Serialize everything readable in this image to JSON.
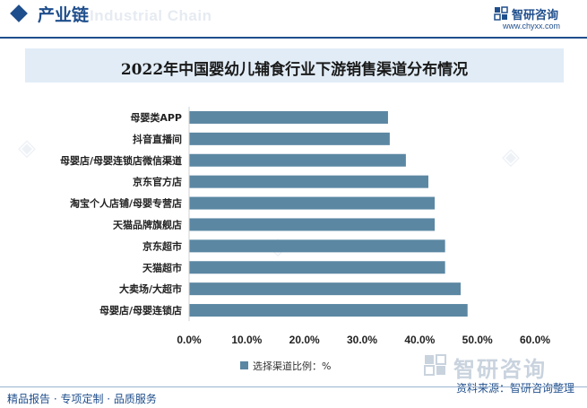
{
  "header": {
    "section_title": "产业链",
    "ghost_text": "Industrial Chain",
    "brand_name": "智研咨询",
    "brand_url": "www.chyxx.com"
  },
  "chart_data": {
    "type": "bar",
    "orientation": "horizontal",
    "title": "2022年中国婴幼儿辅食行业下游销售渠道分布情况",
    "categories": [
      "母婴类APP",
      "抖音直播间",
      "母婴店/母婴连锁店微信渠道",
      "京东官方店",
      "淘宝个人店铺/母婴专营店",
      "天猫品牌旗舰店",
      "京东超市",
      "天猫超市",
      "大卖场/大超市",
      "母婴店/母婴连锁店"
    ],
    "series": [
      {
        "name": "选择渠道比例：%",
        "values": [
          34.5,
          34.8,
          37.6,
          41.5,
          42.6,
          42.6,
          44.4,
          44.4,
          47.1,
          48.3
        ]
      }
    ],
    "xlim": [
      0,
      60
    ],
    "xticks": [
      "0.0%",
      "10.0%",
      "20.0%",
      "30.0%",
      "40.0%",
      "50.0%",
      "60.0%"
    ],
    "legend_position": "bottom",
    "bar_color": "#5b87a3",
    "grid": false
  },
  "footer": {
    "left_text": "精品报告 · 专项定制 · 品质服务",
    "source_text": "资料来源：智研咨询整理",
    "watermark_brand": "智研咨询"
  }
}
